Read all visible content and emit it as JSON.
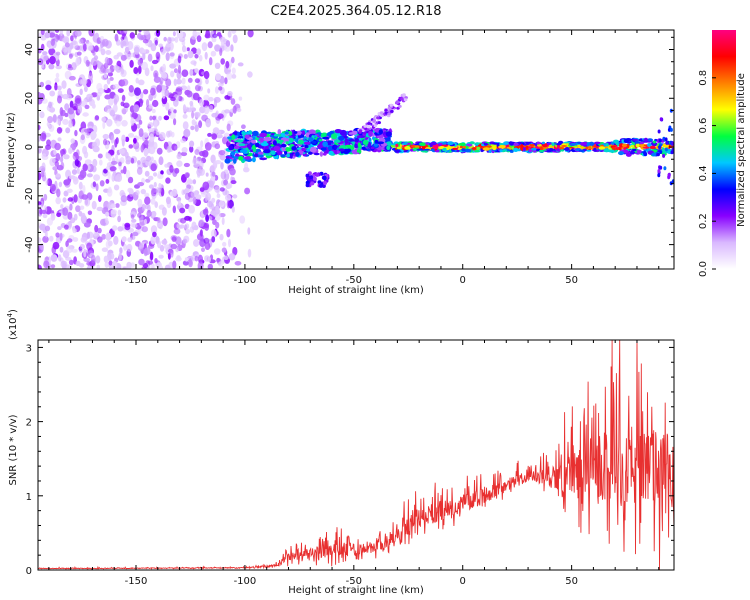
{
  "title": "C2E4.2025.364.05.12.R18",
  "chart_data": [
    {
      "type": "heatmap",
      "xlabel": "Height of straight line (km)",
      "ylabel": "Frequency (Hz)",
      "xlim": [
        -195,
        97
      ],
      "ylim": [
        -50,
        48
      ],
      "xticks": [
        -150,
        -100,
        -50,
        0,
        50
      ],
      "xtick_labels": [
        "-150",
        "-100",
        "-50",
        "0",
        "50"
      ],
      "yticks": [
        -40,
        -20,
        0,
        20,
        40
      ],
      "ytick_labels": [
        "-40",
        "-20",
        "0",
        "20",
        "40"
      ],
      "colorbar": {
        "label": "Normalized spectral amplitude",
        "range": [
          0,
          1
        ],
        "ticks": [
          0.0,
          0.2,
          0.4,
          0.6,
          0.8
        ],
        "tick_labels": [
          "0.0",
          "0.2",
          "0.4",
          "0.6",
          "0.8"
        ],
        "colors": [
          "#ffffff",
          "#d9b8ff",
          "#8800ff",
          "#0000ff",
          "#00c8ff",
          "#00ff40",
          "#ffff00",
          "#ff8000",
          "#ff0000",
          "#ff0080"
        ]
      },
      "regions": [
        {
          "name": "diffuse noise",
          "x_range": [
            -195,
            -105
          ],
          "freq_range": [
            -50,
            48
          ],
          "level": 0.15
        },
        {
          "name": "rising segment",
          "x_range": [
            -105,
            -35
          ],
          "freq_center": 0,
          "level": 0.4
        },
        {
          "name": "upper branch",
          "x_range": [
            -45,
            -25
          ],
          "freq_range": [
            10,
            28
          ],
          "level": 0.15
        },
        {
          "name": "lower blob",
          "x_range": [
            -72,
            -62
          ],
          "freq_center": -13,
          "level": 0.2
        },
        {
          "name": "flat line",
          "x_range": [
            -30,
            97
          ],
          "freq_center": 0,
          "level": 0.9
        }
      ]
    },
    {
      "type": "line",
      "xlabel": "Height of straight line (km)",
      "ylabel": "SNR (10 * v/v)",
      "multiplier_label": "(x10",
      "multiplier_exp": "4",
      "xlim": [
        -195,
        97
      ],
      "ylim": [
        0,
        3.1
      ],
      "xticks": [
        -150,
        -100,
        -50,
        0,
        50
      ],
      "xtick_labels": [
        "-150",
        "-100",
        "-50",
        "0",
        "50"
      ],
      "yticks": [
        0,
        1,
        2,
        3
      ],
      "ytick_labels": [
        "0",
        "1",
        "2",
        "3"
      ],
      "color": "#e83030",
      "envelope": {
        "x": [
          -195,
          -100,
          -85,
          -80,
          -60,
          -45,
          -35,
          -30,
          -25,
          -20,
          -10,
          0,
          10,
          20,
          30,
          40,
          50,
          60,
          70,
          80,
          90,
          97
        ],
        "base": [
          0.02,
          0.03,
          0.06,
          0.2,
          0.25,
          0.3,
          0.35,
          0.45,
          0.55,
          0.7,
          0.8,
          0.9,
          1.0,
          1.15,
          1.25,
          1.25,
          1.3,
          1.35,
          1.4,
          1.4,
          1.3,
          1.2
        ],
        "spread": [
          0.01,
          0.01,
          0.04,
          0.15,
          0.2,
          0.2,
          0.25,
          0.4,
          0.55,
          0.3,
          0.3,
          0.25,
          0.25,
          0.2,
          0.15,
          0.25,
          0.7,
          1.0,
          1.2,
          1.2,
          1.3,
          1.4
        ]
      }
    }
  ]
}
